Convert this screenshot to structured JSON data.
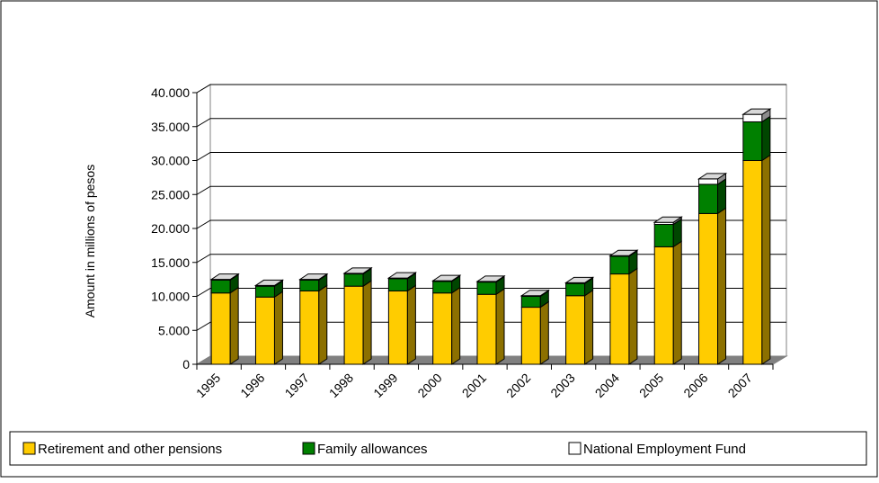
{
  "chart_data": {
    "type": "bar",
    "stacked": true,
    "three_d": true,
    "categories": [
      "1995",
      "1996",
      "1997",
      "1998",
      "1999",
      "2000",
      "2001",
      "2002",
      "2003",
      "2004",
      "2005",
      "2006",
      "2007"
    ],
    "series": [
      {
        "name": "Retirement and other pensions",
        "color": "#FFCC00",
        "values": [
          10500,
          9900,
          10800,
          11500,
          10800,
          10500,
          10300,
          8400,
          10100,
          13300,
          17300,
          22200,
          30000
        ]
      },
      {
        "name": "Family allowances",
        "color": "#008000",
        "values": [
          1900,
          1600,
          1600,
          1800,
          1800,
          1700,
          1800,
          1600,
          1800,
          2600,
          3300,
          4300,
          5700
        ]
      },
      {
        "name": "National Employment Fund",
        "color": "#FFFFFF",
        "values": [
          100,
          100,
          100,
          100,
          100,
          100,
          100,
          100,
          100,
          100,
          300,
          800,
          1100
        ]
      }
    ],
    "ylabel": "Amount in millions of pesos",
    "xlabel": "",
    "title": "",
    "ylim": [
      0,
      40000
    ],
    "yticks": [
      0,
      5000,
      10000,
      15000,
      20000,
      25000,
      30000,
      35000,
      40000
    ],
    "ytick_labels": [
      "0",
      "5.000",
      "10.000",
      "15.000",
      "20.000",
      "25.000",
      "30.000",
      "35.000",
      "40.000"
    ],
    "grid": true,
    "legend_position": "bottom"
  }
}
